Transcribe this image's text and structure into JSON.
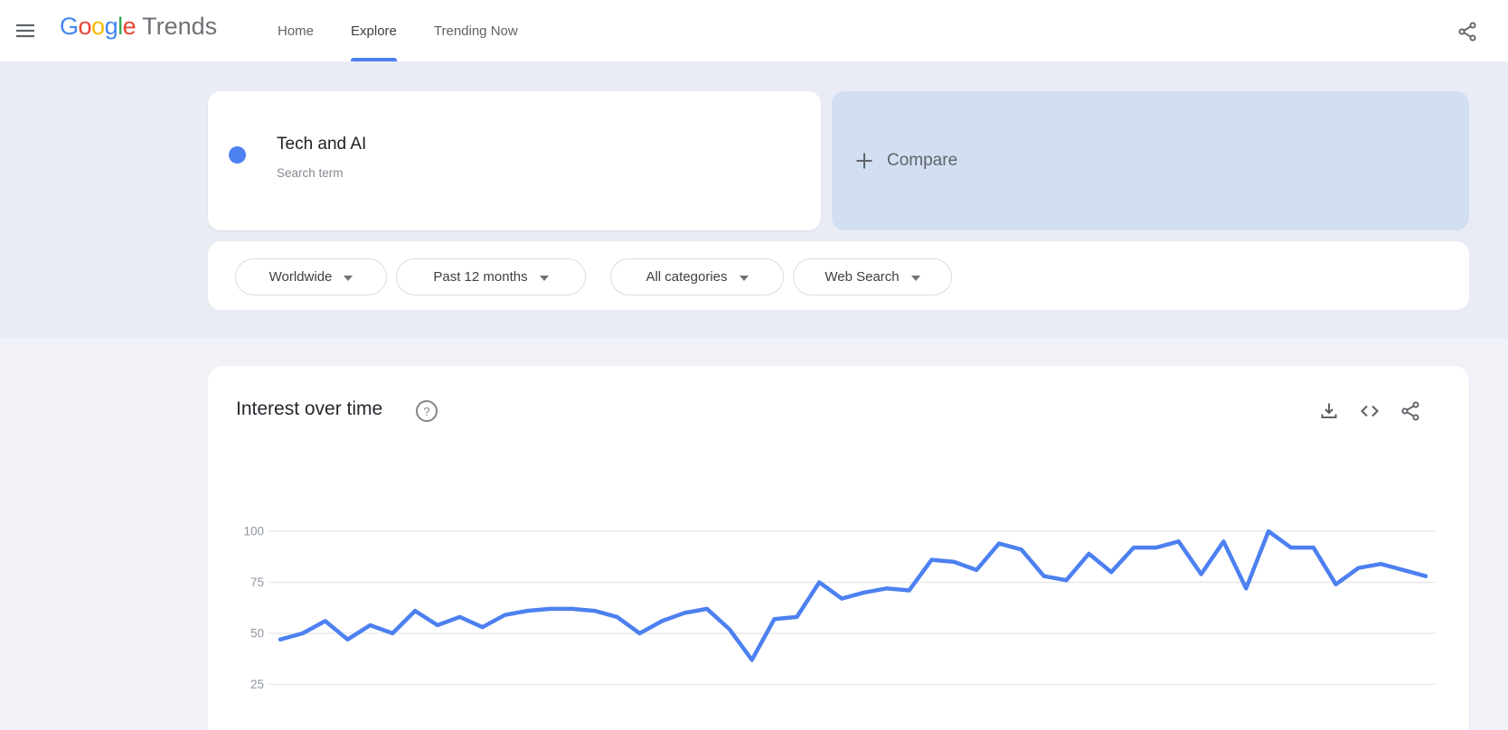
{
  "topbar": {
    "logo": {
      "letters": [
        {
          "ch": "G",
          "color": "#4285F4"
        },
        {
          "ch": "o",
          "color": "#EA4335"
        },
        {
          "ch": "o",
          "color": "#FBBC05"
        },
        {
          "ch": "g",
          "color": "#4285F4"
        },
        {
          "ch": "l",
          "color": "#34A853"
        },
        {
          "ch": "e",
          "color": "#EA4335"
        }
      ],
      "suffix": "Trends"
    },
    "nav": [
      {
        "label": "Home",
        "active": false
      },
      {
        "label": "Explore",
        "active": true
      },
      {
        "label": "Trending Now",
        "active": false
      }
    ]
  },
  "icons": {
    "menu": "hamburger-menu-icon",
    "share": "share-icon",
    "download": "download-icon",
    "embed": "code-icon",
    "help": "help-icon",
    "plus": "plus-icon",
    "dropdown": "chevron-down-icon"
  },
  "search": {
    "term": "Tech and AI",
    "term_type": "Search term",
    "compare_label": "Compare",
    "dot_color": "#4d80f0"
  },
  "filters": [
    {
      "label": "Worldwide"
    },
    {
      "label": "Past 12 months"
    },
    {
      "label": "All categories"
    },
    {
      "label": "Web Search"
    }
  ],
  "chart_card": {
    "title": "Interest over time"
  },
  "chart_data": {
    "type": "line",
    "title": "Interest over time",
    "series": [
      {
        "name": "Tech and AI",
        "values": [
          47,
          50,
          56,
          47,
          54,
          50,
          61,
          54,
          58,
          53,
          59,
          61,
          62,
          62,
          61,
          58,
          50,
          56,
          60,
          62,
          52,
          37,
          57,
          58,
          75,
          67,
          70,
          72,
          71,
          86,
          85,
          81,
          94,
          91,
          78,
          76,
          89,
          80,
          92,
          92,
          95,
          79,
          95,
          72,
          100,
          92,
          92,
          74,
          82,
          84,
          81,
          78
        ]
      }
    ],
    "x_axis": {
      "tick_labels_visible": false,
      "points": 52
    },
    "yticks": [
      100,
      75,
      50,
      25
    ],
    "ylim": [
      0,
      100
    ],
    "grid": true,
    "legend_position": "none",
    "line_color": "#4d80f0",
    "gridline_color": "#e8e8e8",
    "axis_label_color": "#9097a0"
  },
  "colors": {
    "topbar_bg": "#ffffff",
    "section_top_bg": "#e9ecf4",
    "section_bottom_bg": "#f0f2f8",
    "compare_card_bg": "#d2dff2",
    "accent_blue": "#4d80f0",
    "nav_gray": "#5f6368"
  }
}
